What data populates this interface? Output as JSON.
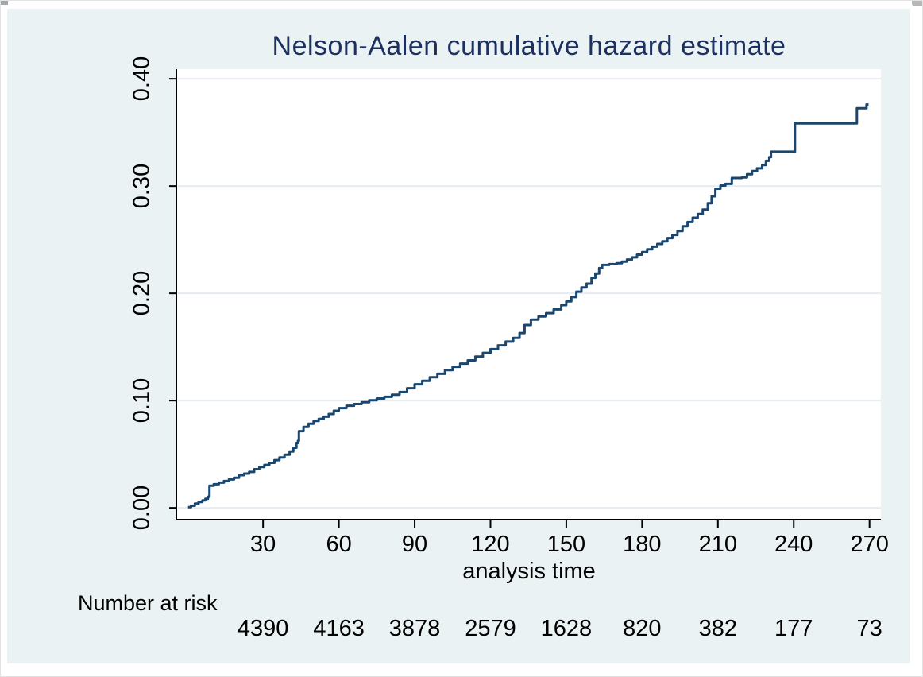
{
  "colors": {
    "figure_background": "#eaf2f3",
    "plot_background": "#ffffff",
    "grid_line": "#e4ecf1",
    "axis_line": "#000000",
    "curve_line": "#1a476f",
    "title_text": "#1d3160",
    "tick_text": "#000000"
  },
  "chart_data": {
    "type": "line",
    "subtype": "step-after",
    "title": "Nelson-Aalen cumulative hazard estimate",
    "xlabel": "analysis time",
    "ylabel": "",
    "legend": "none",
    "grid": "horizontal",
    "xlim": [
      -4,
      274.5
    ],
    "ylim": [
      -0.011,
      0.409
    ],
    "xticks": [
      30,
      60,
      90,
      120,
      150,
      180,
      210,
      240,
      270
    ],
    "yticks": {
      "values": [
        0.0,
        0.1,
        0.2,
        0.3,
        0.4
      ],
      "labels": [
        "0.00",
        "0.10",
        "0.20",
        "0.30",
        "0.40"
      ]
    },
    "series": [
      {
        "name": "Nelson-Aalen cumulative hazard",
        "points": [
          [
            0.3,
            0.0007
          ],
          [
            1.5,
            0.002
          ],
          [
            3,
            0.004
          ],
          [
            4.5,
            0.0055
          ],
          [
            6,
            0.007
          ],
          [
            7.2,
            0.0085
          ],
          [
            8.2,
            0.0104
          ],
          [
            8.8,
            0.0207
          ],
          [
            10.5,
            0.022
          ],
          [
            12.5,
            0.0235
          ],
          [
            14.5,
            0.025
          ],
          [
            16.5,
            0.0265
          ],
          [
            18.5,
            0.028
          ],
          [
            20.5,
            0.0305
          ],
          [
            22.5,
            0.032
          ],
          [
            24.5,
            0.0335
          ],
          [
            26.5,
            0.036
          ],
          [
            28.5,
            0.038
          ],
          [
            30.5,
            0.04
          ],
          [
            32.5,
            0.042
          ],
          [
            34.5,
            0.0445
          ],
          [
            36.5,
            0.047
          ],
          [
            38.5,
            0.0495
          ],
          [
            40.5,
            0.0525
          ],
          [
            42,
            0.056
          ],
          [
            43.2,
            0.0605
          ],
          [
            43.8,
            0.0625
          ],
          [
            44.2,
            0.0715
          ],
          [
            46,
            0.0755
          ],
          [
            48,
            0.0785
          ],
          [
            50,
            0.081
          ],
          [
            52,
            0.083
          ],
          [
            54,
            0.085
          ],
          [
            56,
            0.0875
          ],
          [
            58,
            0.0905
          ],
          [
            60,
            0.093
          ],
          [
            63,
            0.0952
          ],
          [
            66,
            0.0968
          ],
          [
            69,
            0.0985
          ],
          [
            72,
            0.1003
          ],
          [
            75,
            0.102
          ],
          [
            78,
            0.1035
          ],
          [
            81,
            0.1055
          ],
          [
            84,
            0.108
          ],
          [
            87,
            0.1115
          ],
          [
            90,
            0.1152
          ],
          [
            93,
            0.1185
          ],
          [
            96,
            0.1218
          ],
          [
            99,
            0.125
          ],
          [
            102,
            0.1285
          ],
          [
            105,
            0.1315
          ],
          [
            108,
            0.1345
          ],
          [
            111,
            0.1375
          ],
          [
            114,
            0.141
          ],
          [
            117,
            0.1445
          ],
          [
            120,
            0.148
          ],
          [
            123,
            0.1515
          ],
          [
            126,
            0.155
          ],
          [
            129,
            0.1585
          ],
          [
            131.5,
            0.163
          ],
          [
            133.5,
            0.1705
          ],
          [
            136,
            0.1755
          ],
          [
            139,
            0.1785
          ],
          [
            142,
            0.1815
          ],
          [
            145,
            0.185
          ],
          [
            148,
            0.189
          ],
          [
            150,
            0.1925
          ],
          [
            152,
            0.1965
          ],
          [
            154,
            0.2015
          ],
          [
            156,
            0.2055
          ],
          [
            158,
            0.209
          ],
          [
            160,
            0.2145
          ],
          [
            161.5,
            0.2185
          ],
          [
            163,
            0.2235
          ],
          [
            164.2,
            0.2265
          ],
          [
            167,
            0.2272
          ],
          [
            170,
            0.228
          ],
          [
            172,
            0.2295
          ],
          [
            174,
            0.2315
          ],
          [
            176,
            0.2335
          ],
          [
            178,
            0.236
          ],
          [
            180,
            0.2385
          ],
          [
            182,
            0.241
          ],
          [
            184,
            0.2435
          ],
          [
            186,
            0.246
          ],
          [
            188,
            0.2485
          ],
          [
            190,
            0.2515
          ],
          [
            192,
            0.2545
          ],
          [
            194,
            0.258
          ],
          [
            196,
            0.2625
          ],
          [
            198,
            0.2665
          ],
          [
            200,
            0.2705
          ],
          [
            202,
            0.274
          ],
          [
            204,
            0.278
          ],
          [
            206,
            0.284
          ],
          [
            207.5,
            0.2905
          ],
          [
            209,
            0.2975
          ],
          [
            211,
            0.3005
          ],
          [
            213,
            0.302
          ],
          [
            215.5,
            0.3075
          ],
          [
            219.5,
            0.308
          ],
          [
            221.5,
            0.311
          ],
          [
            223.5,
            0.314
          ],
          [
            225.5,
            0.3165
          ],
          [
            227.5,
            0.3195
          ],
          [
            229,
            0.3235
          ],
          [
            230.3,
            0.327
          ],
          [
            231,
            0.332
          ],
          [
            240.5,
            0.3585
          ],
          [
            264.6,
            0.3585
          ],
          [
            265,
            0.3725
          ],
          [
            268.6,
            0.3725
          ],
          [
            268.8,
            0.376
          ],
          [
            269.6,
            0.376
          ]
        ]
      }
    ],
    "risk_table": {
      "label": "Number at risk",
      "times": [
        30,
        60,
        90,
        120,
        150,
        180,
        210,
        240,
        270
      ],
      "counts": [
        "4390",
        "4163",
        "3878",
        "2579",
        "1628",
        "820",
        "382",
        "177",
        "73"
      ]
    }
  }
}
